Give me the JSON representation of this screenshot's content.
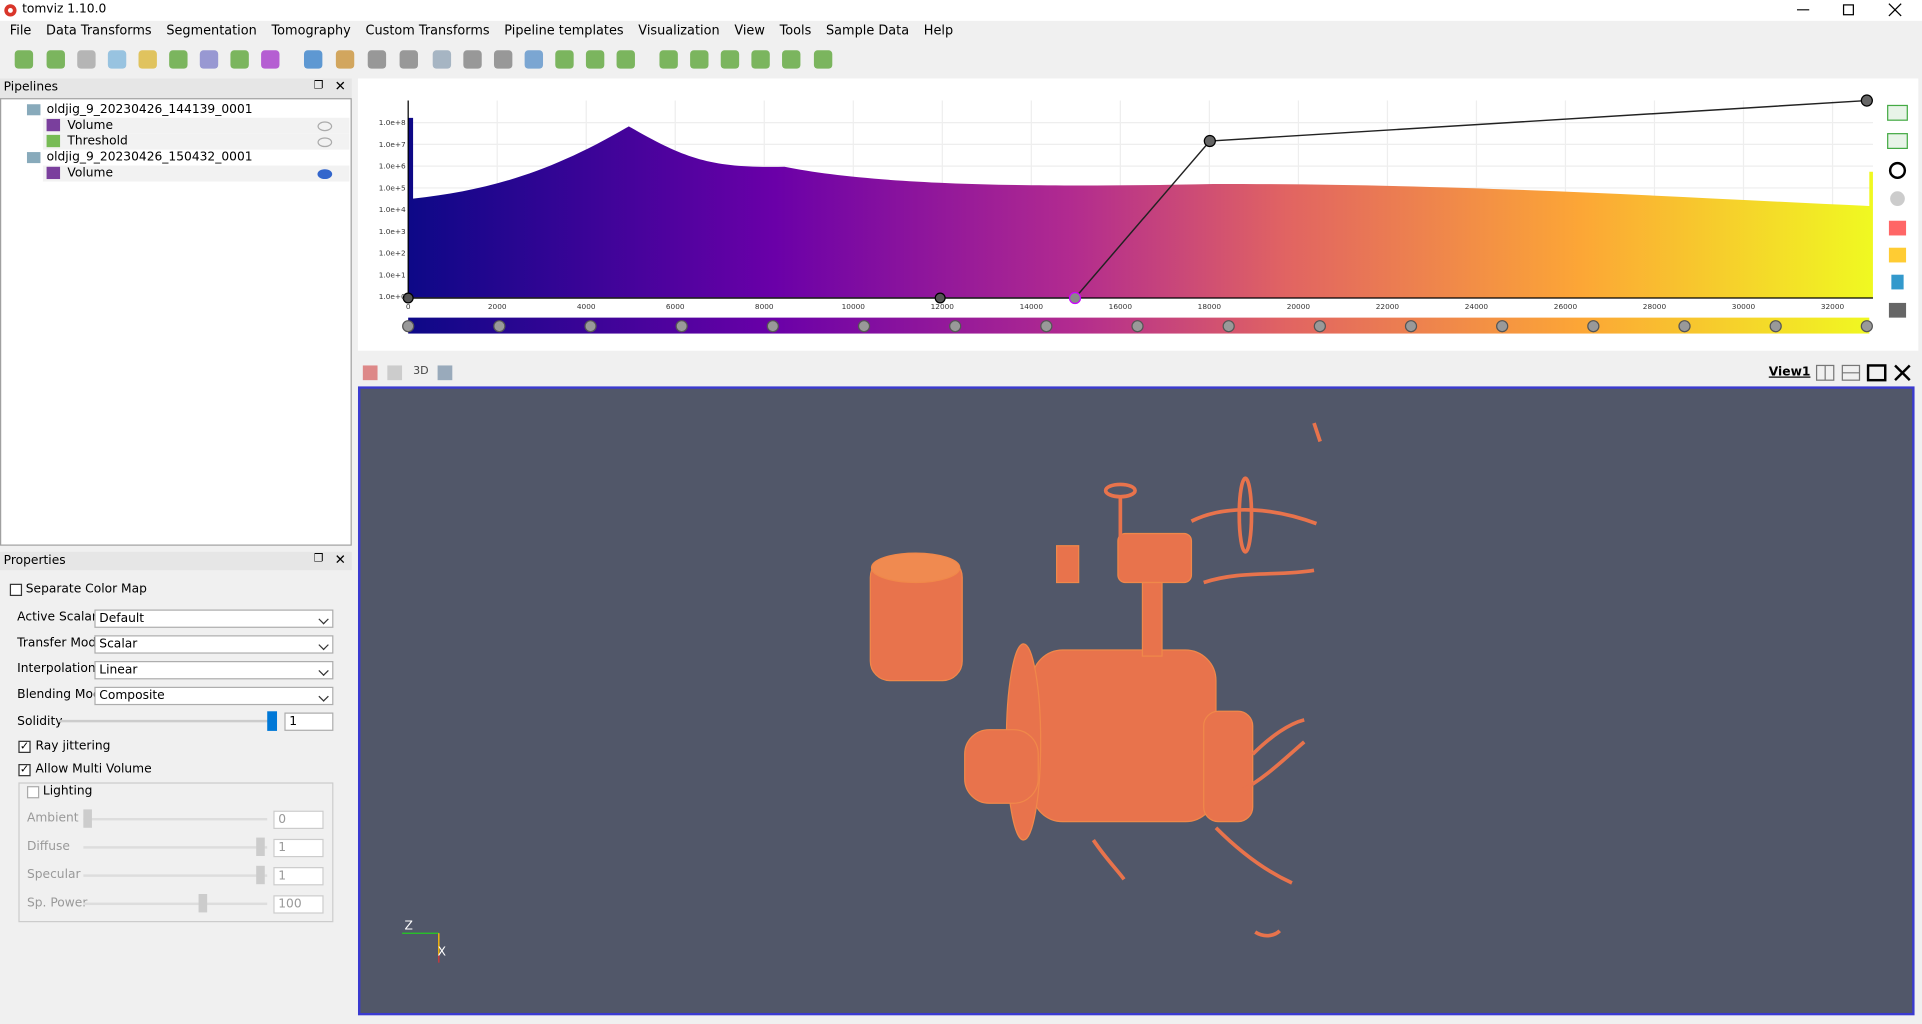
{
  "window": {
    "title": "tomviz 1.10.0"
  },
  "menu": [
    "File",
    "Data Transforms",
    "Segmentation",
    "Tomography",
    "Custom Transforms",
    "Pipeline templates",
    "Visualization",
    "View",
    "Tools",
    "Sample Data",
    "Help"
  ],
  "pipelines": {
    "title": "Pipelines",
    "items": [
      {
        "label": "oldjig_9_20230426_144139_0001",
        "children": [
          "Volume",
          "Threshold"
        ]
      },
      {
        "label": "oldjig_9_20230426_150432_0001",
        "children": [
          "Volume"
        ]
      }
    ]
  },
  "properties": {
    "title": "Properties",
    "separate_color_map": "Separate Color Map",
    "fields": [
      {
        "label": "Active Scalars",
        "value": "Default"
      },
      {
        "label": "Transfer Mode",
        "value": "Scalar"
      },
      {
        "label": "Interpolation",
        "value": "Linear"
      },
      {
        "label": "Blending Mode",
        "value": "Composite"
      }
    ],
    "solidity": {
      "label": "Solidity",
      "value": "1"
    },
    "ray_jittering": "Ray jittering",
    "allow_multi_volume": "Allow Multi Volume",
    "lighting": {
      "label": "Lighting",
      "params": [
        {
          "label": "Ambient",
          "value": "0"
        },
        {
          "label": "Diffuse",
          "value": "1"
        },
        {
          "label": "Specular",
          "value": "1"
        },
        {
          "label": "Sp. Power",
          "value": "100"
        }
      ]
    }
  },
  "histogram": {
    "xticks": [
      0,
      2000,
      4000,
      6000,
      8000,
      10000,
      12000,
      14000,
      16000,
      18000,
      20000,
      22000,
      24000,
      26000,
      28000,
      30000,
      32000
    ],
    "yticks": [
      "1.0e+0",
      "1.0e+1",
      "1.0e+2",
      "1.0e+3",
      "1.0e+4",
      "1.0e+5",
      "1.0e+6",
      "1.0e+7",
      "1.0e+8"
    ]
  },
  "view": {
    "mode": "3D",
    "name": "View1",
    "axes": [
      "Z",
      "X"
    ]
  }
}
